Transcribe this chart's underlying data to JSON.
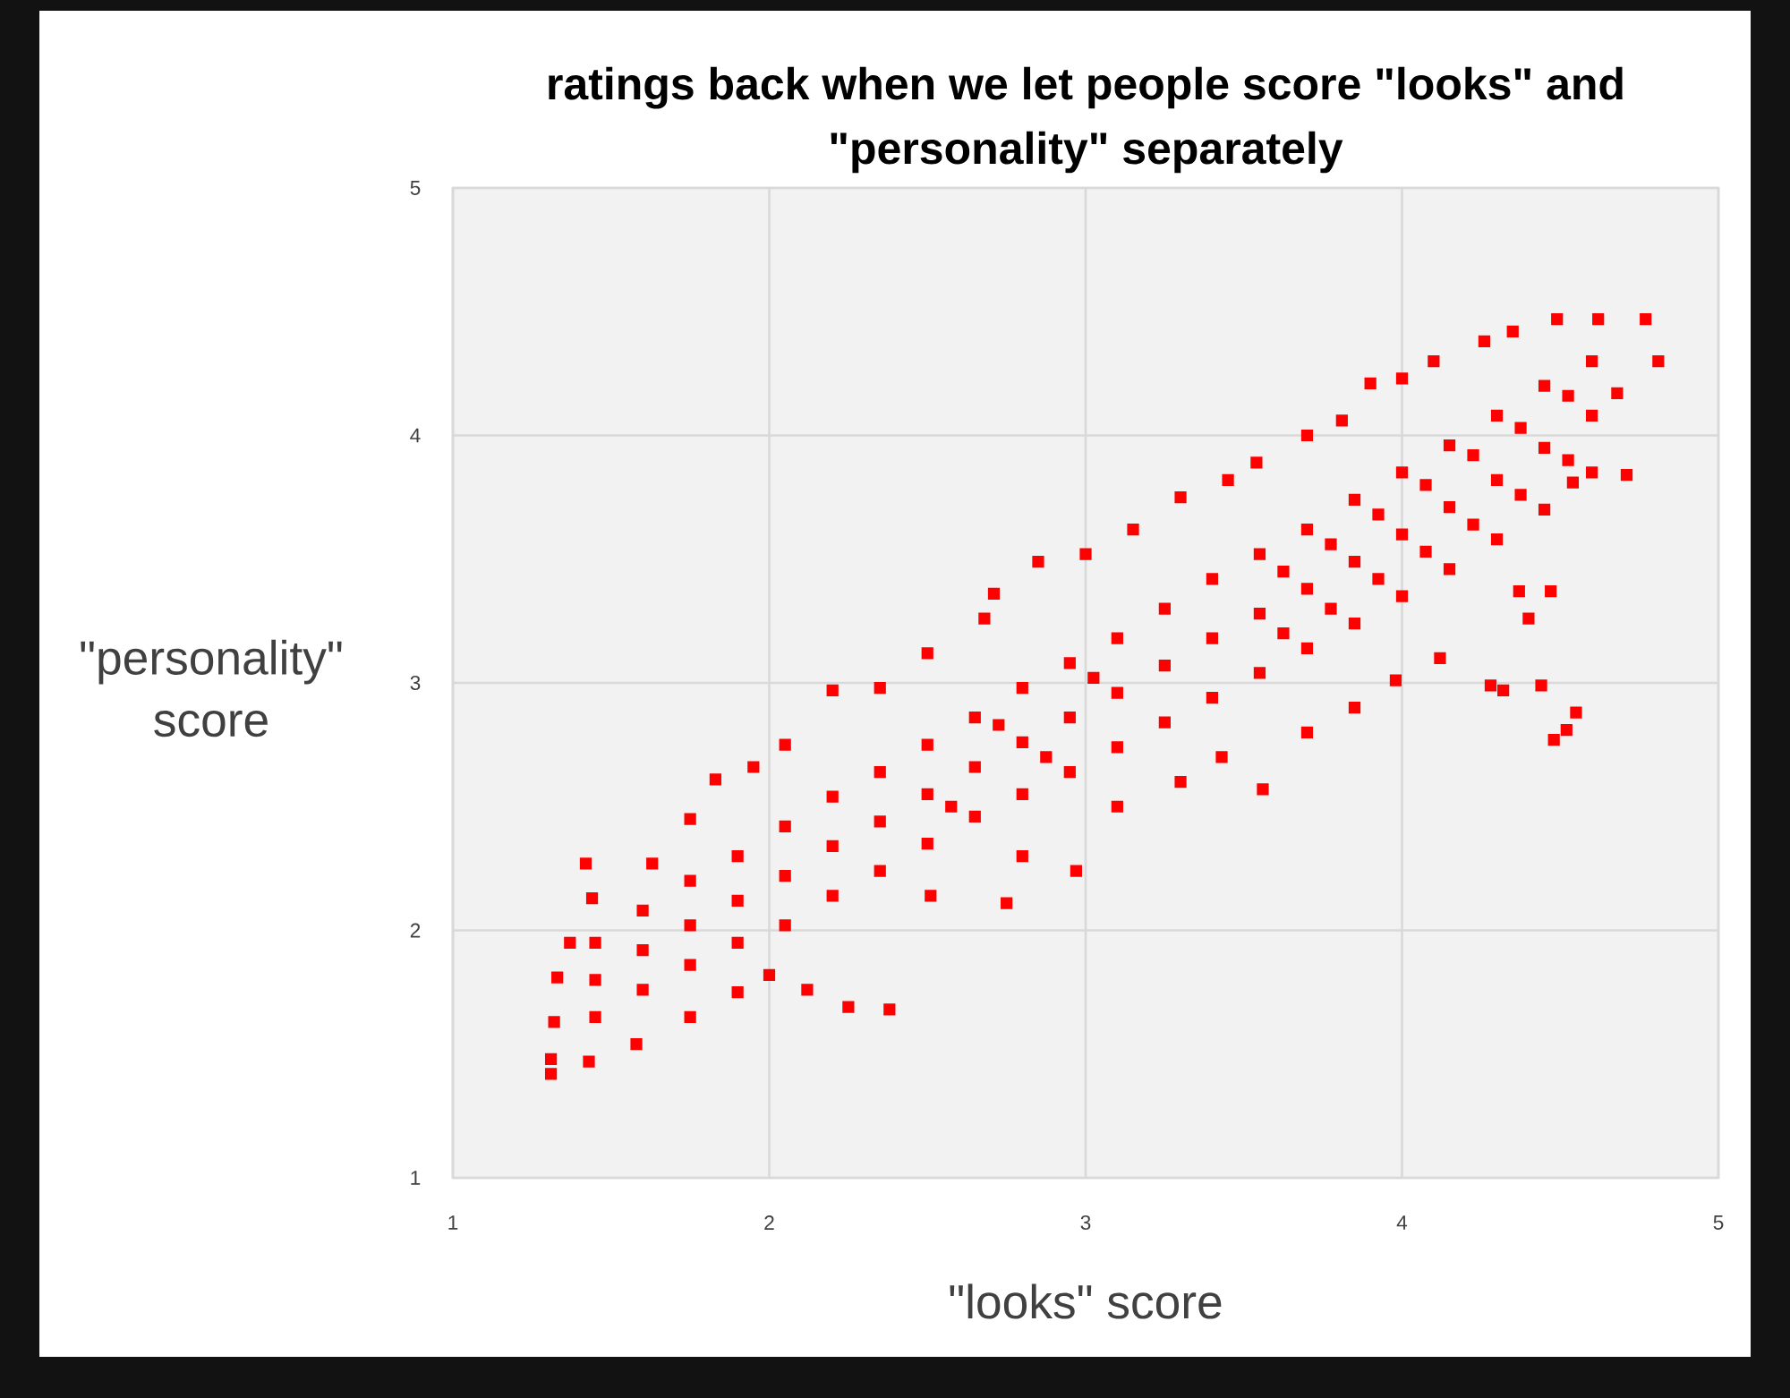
{
  "chart_data": {
    "type": "scatter",
    "title": "ratings back when we let people score \"looks\" and \"personality\" separately",
    "xlabel": "\"looks\" score",
    "ylabel": "\"personality\" score",
    "xlim": [
      1,
      5
    ],
    "ylim": [
      1,
      5
    ],
    "xticks": [
      1,
      2,
      3,
      4,
      5
    ],
    "yticks": [
      1,
      2,
      3,
      4,
      5
    ],
    "grid": true,
    "marker": "square",
    "color": "#ff0000",
    "x": [
      1.31,
      1.31,
      1.32,
      1.33,
      1.37,
      1.42,
      1.44,
      1.43,
      1.58,
      1.63,
      1.75,
      1.83,
      1.95,
      2.05,
      2.2,
      2.35,
      2.5,
      2.68,
      2.71,
      2.85,
      3.0,
      3.15,
      3.3,
      3.45,
      3.54,
      3.7,
      3.81,
      3.9,
      4.0,
      4.1,
      4.26,
      4.35,
      4.49,
      4.62,
      4.77,
      4.81,
      4.68,
      4.71,
      4.54,
      4.47,
      4.4,
      4.37,
      4.55,
      4.52,
      4.48,
      4.44,
      4.32,
      4.28,
      4.12,
      3.98,
      3.85,
      3.7,
      3.56,
      3.43,
      3.3,
      3.1,
      2.97,
      2.8,
      2.75,
      2.51,
      2.38,
      2.25,
      2.12,
      2.0,
      1.9,
      1.75,
      1.45,
      1.45,
      1.45,
      1.6,
      1.6,
      1.6,
      1.75,
      1.75,
      1.75,
      1.9,
      1.9,
      1.9,
      2.05,
      2.05,
      2.05,
      2.2,
      2.2,
      2.2,
      2.35,
      2.35,
      2.35,
      2.5,
      2.5,
      2.5,
      2.65,
      2.65,
      2.65,
      2.8,
      2.8,
      2.8,
      2.95,
      2.95,
      2.95,
      3.1,
      3.1,
      3.1,
      3.25,
      3.25,
      3.25,
      3.4,
      3.4,
      3.4,
      3.55,
      3.55,
      3.55,
      3.7,
      3.7,
      3.7,
      3.85,
      3.85,
      3.85,
      4.0,
      4.0,
      4.0,
      4.15,
      4.15,
      4.15,
      4.3,
      4.3,
      4.3,
      4.45,
      4.45,
      4.45,
      4.6,
      4.6,
      4.6,
      3.625,
      3.625,
      3.775,
      3.775,
      3.925,
      3.925,
      4.075,
      4.075,
      4.225,
      4.225,
      4.375,
      4.375,
      4.525,
      4.525,
      2.575,
      2.725,
      2.875,
      3.025
    ],
    "values": [
      1.42,
      1.48,
      1.63,
      1.81,
      1.95,
      2.27,
      2.13,
      1.47,
      1.54,
      2.27,
      2.45,
      2.61,
      2.66,
      2.75,
      2.97,
      2.98,
      3.12,
      3.26,
      3.36,
      3.49,
      3.52,
      3.62,
      3.75,
      3.82,
      3.89,
      4.0,
      4.06,
      4.21,
      4.23,
      4.3,
      4.38,
      4.42,
      4.47,
      4.47,
      4.47,
      4.3,
      4.17,
      3.84,
      3.81,
      3.37,
      3.26,
      3.37,
      2.88,
      2.81,
      2.77,
      2.99,
      2.97,
      2.99,
      3.1,
      3.01,
      2.9,
      2.8,
      2.57,
      2.7,
      2.6,
      2.5,
      2.24,
      2.3,
      2.11,
      2.14,
      1.68,
      1.69,
      1.76,
      1.82,
      1.75,
      1.65,
      1.8,
      1.95,
      1.65,
      1.92,
      2.08,
      1.76,
      2.02,
      2.2,
      1.86,
      2.12,
      2.3,
      1.95,
      2.22,
      2.42,
      2.02,
      2.34,
      2.54,
      2.14,
      2.44,
      2.64,
      2.24,
      2.55,
      2.75,
      2.35,
      2.66,
      2.86,
      2.46,
      2.76,
      2.98,
      2.55,
      2.86,
      3.08,
      2.64,
      2.96,
      3.18,
      2.74,
      3.07,
      3.3,
      2.84,
      3.18,
      3.42,
      2.94,
      3.28,
      3.52,
      3.04,
      3.38,
      3.62,
      3.14,
      3.49,
      3.74,
      3.24,
      3.6,
      3.85,
      3.35,
      3.71,
      3.96,
      3.46,
      3.82,
      4.08,
      3.58,
      3.95,
      4.2,
      3.7,
      4.08,
      4.3,
      3.85,
      3.45,
      3.2,
      3.56,
      3.3,
      3.68,
      3.42,
      3.8,
      3.53,
      3.92,
      3.64,
      4.03,
      3.76,
      4.16,
      3.9,
      2.5,
      2.83,
      2.7,
      3.02
    ]
  }
}
